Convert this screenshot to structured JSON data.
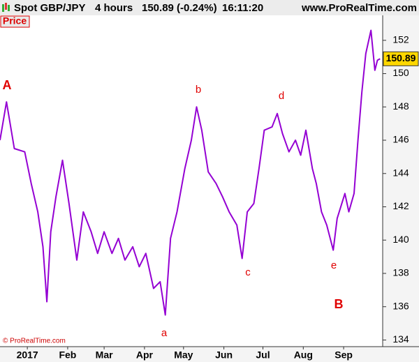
{
  "chart_data": {
    "type": "line",
    "header": {
      "symbol": "Spot GBP/JPY",
      "interval": "4 hours",
      "quote": "150.89 (-0.24%)",
      "time": "16:11:20",
      "site": "www.ProRealTime.com"
    },
    "panel_label": "Price",
    "copyright": "© ProRealTime.com",
    "last_price": 150.89,
    "last_price_label": "150.89",
    "annotations": [
      "A",
      "a",
      "b",
      "c",
      "d",
      "e",
      "B"
    ],
    "grid": false,
    "xlim": [
      -21,
      273
    ],
    "xticks": [
      {
        "value": 0,
        "label": "2017"
      },
      {
        "value": 31,
        "label": "Feb"
      },
      {
        "value": 59,
        "label": "Mar"
      },
      {
        "value": 90,
        "label": "Apr"
      },
      {
        "value": 120,
        "label": "May"
      },
      {
        "value": 151,
        "label": "Jun"
      },
      {
        "value": 181,
        "label": "Jul"
      },
      {
        "value": 212,
        "label": "Aug"
      },
      {
        "value": 243,
        "label": "Sep"
      }
    ],
    "ylim": [
      133.6,
      153.5
    ],
    "yticks": [
      134,
      136,
      138,
      140,
      142,
      144,
      146,
      148,
      150,
      152
    ],
    "series": [
      {
        "name": "GBP/JPY",
        "color": "#9400d3",
        "x": [
          -21,
          -16,
          -10,
          -2,
          3,
          8,
          12,
          15,
          18,
          22,
          27,
          32,
          38,
          43,
          49,
          54,
          59,
          65,
          70,
          75,
          81,
          86,
          91,
          97,
          102,
          106,
          110,
          115,
          121,
          126,
          130,
          134,
          139,
          145,
          150,
          155,
          161,
          165,
          169,
          174,
          178,
          182,
          188,
          192,
          196,
          201,
          206,
          210,
          214,
          219,
          222,
          226,
          230,
          235,
          238,
          244,
          247,
          251,
          254,
          257,
          260,
          264,
          267,
          269,
          271
        ],
        "values": [
          146.0,
          148.3,
          145.5,
          145.3,
          143.4,
          141.7,
          139.6,
          136.3,
          140.5,
          142.6,
          144.8,
          142.2,
          138.8,
          141.7,
          140.5,
          139.2,
          140.5,
          139.2,
          140.1,
          138.8,
          139.6,
          138.4,
          139.2,
          137.1,
          137.5,
          135.5,
          140.1,
          141.7,
          144.3,
          146.0,
          148.0,
          146.6,
          144.1,
          143.4,
          142.6,
          141.7,
          140.9,
          138.9,
          141.7,
          142.2,
          144.3,
          146.6,
          146.8,
          147.6,
          146.4,
          145.3,
          146.0,
          145.1,
          146.6,
          144.3,
          143.4,
          141.7,
          140.9,
          139.4,
          141.3,
          142.8,
          141.7,
          142.8,
          146.0,
          148.9,
          151.2,
          152.6,
          150.2,
          150.8,
          150.89
        ]
      }
    ]
  }
}
